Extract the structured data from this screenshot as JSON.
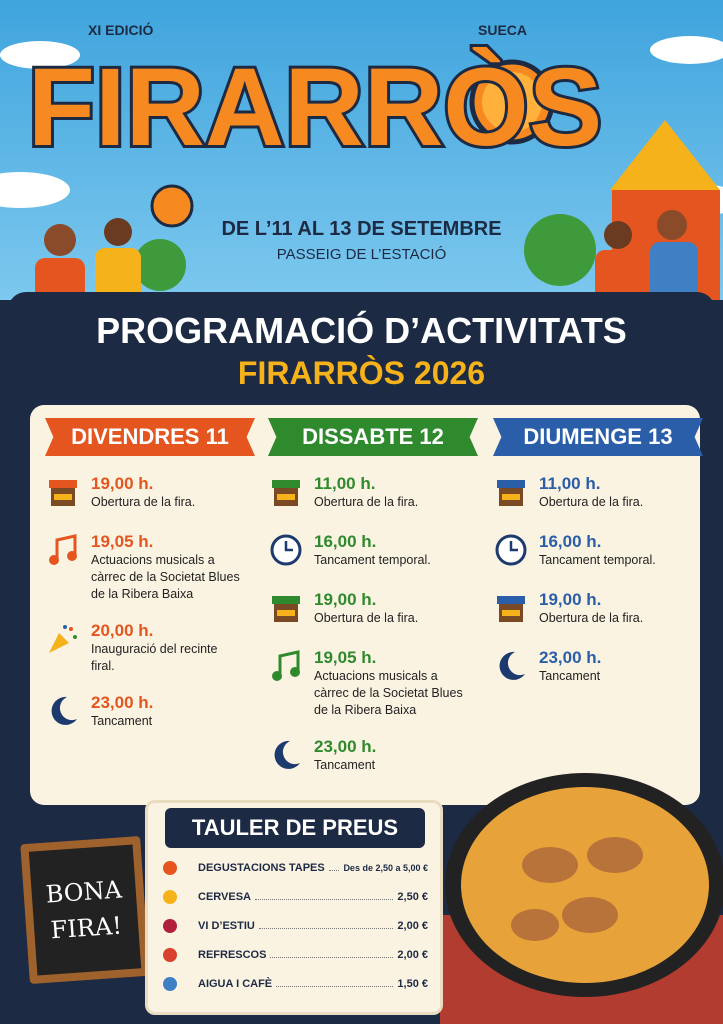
{
  "header": {
    "edition": "XI EDICIÓ",
    "town": "SUECA",
    "title": "FIRARRÒS",
    "dates": "DE L’11 AL 13 DE SETEMBRE",
    "venue": "PASSEIG DE L’ESTACIÓ"
  },
  "program": {
    "title": "PROGRAMACIÓ D’ACTIVITATS",
    "subtitle": "FIRARRÒS 2026",
    "days": [
      {
        "name": "DIVENDRES 11",
        "color": "#e4551f",
        "events": [
          {
            "time": "19,00 h.",
            "text": "Obertura de la fira.",
            "icon": "stall"
          },
          {
            "time": "19,05 h.",
            "text": "Actuacions musicals a càrrec de la Societat Blues de la Ribera Baixa",
            "icon": "music"
          },
          {
            "time": "20,00 h.",
            "text": "Inauguració del recinte firal.",
            "icon": "party"
          },
          {
            "time": "23,00 h.",
            "text": "Tancament",
            "icon": "moon"
          }
        ]
      },
      {
        "name": "DISSABTE 12",
        "color": "#2f8a2e",
        "events": [
          {
            "time": "11,00 h.",
            "text": "Obertura de la fira.",
            "icon": "stall"
          },
          {
            "time": "16,00 h.",
            "text": "Tancament temporal.",
            "icon": "clock"
          },
          {
            "time": "19,00 h.",
            "text": "Obertura de la fira.",
            "icon": "stall"
          },
          {
            "time": "19,05 h.",
            "text": "Actuacions musicals a càrrec de la Societat Blues de la Ribera Baixa",
            "icon": "music"
          },
          {
            "time": "23,00 h.",
            "text": "Tancament",
            "icon": "moon"
          }
        ]
      },
      {
        "name": "DIUMENGE 13",
        "color": "#2b5ea8",
        "events": [
          {
            "time": "11,00 h.",
            "text": "Obertura de la fira.",
            "icon": "stall"
          },
          {
            "time": "16,00 h.",
            "text": "Tancament temporal.",
            "icon": "clock"
          },
          {
            "time": "19,00 h.",
            "text": "Obertura de la fira.",
            "icon": "stall"
          },
          {
            "time": "23,00 h.",
            "text": "Tancament",
            "icon": "moon"
          }
        ]
      }
    ]
  },
  "prices": {
    "title": "TAULER DE PREUS",
    "items": [
      {
        "name": "DEGUSTACIONS TAPES",
        "price": "Des de 2,50 a 5,00 €"
      },
      {
        "name": "CERVESA",
        "price": "2,50 €"
      },
      {
        "name": "VI D’ESTIU",
        "price": "2,00 €"
      },
      {
        "name": "REFRESCOS",
        "price": "2,00 €"
      },
      {
        "name": "AIGUA I CAFÈ",
        "price": "1,50 €"
      }
    ]
  },
  "sign": {
    "lines": [
      "BONA",
      "FIRA!"
    ]
  }
}
